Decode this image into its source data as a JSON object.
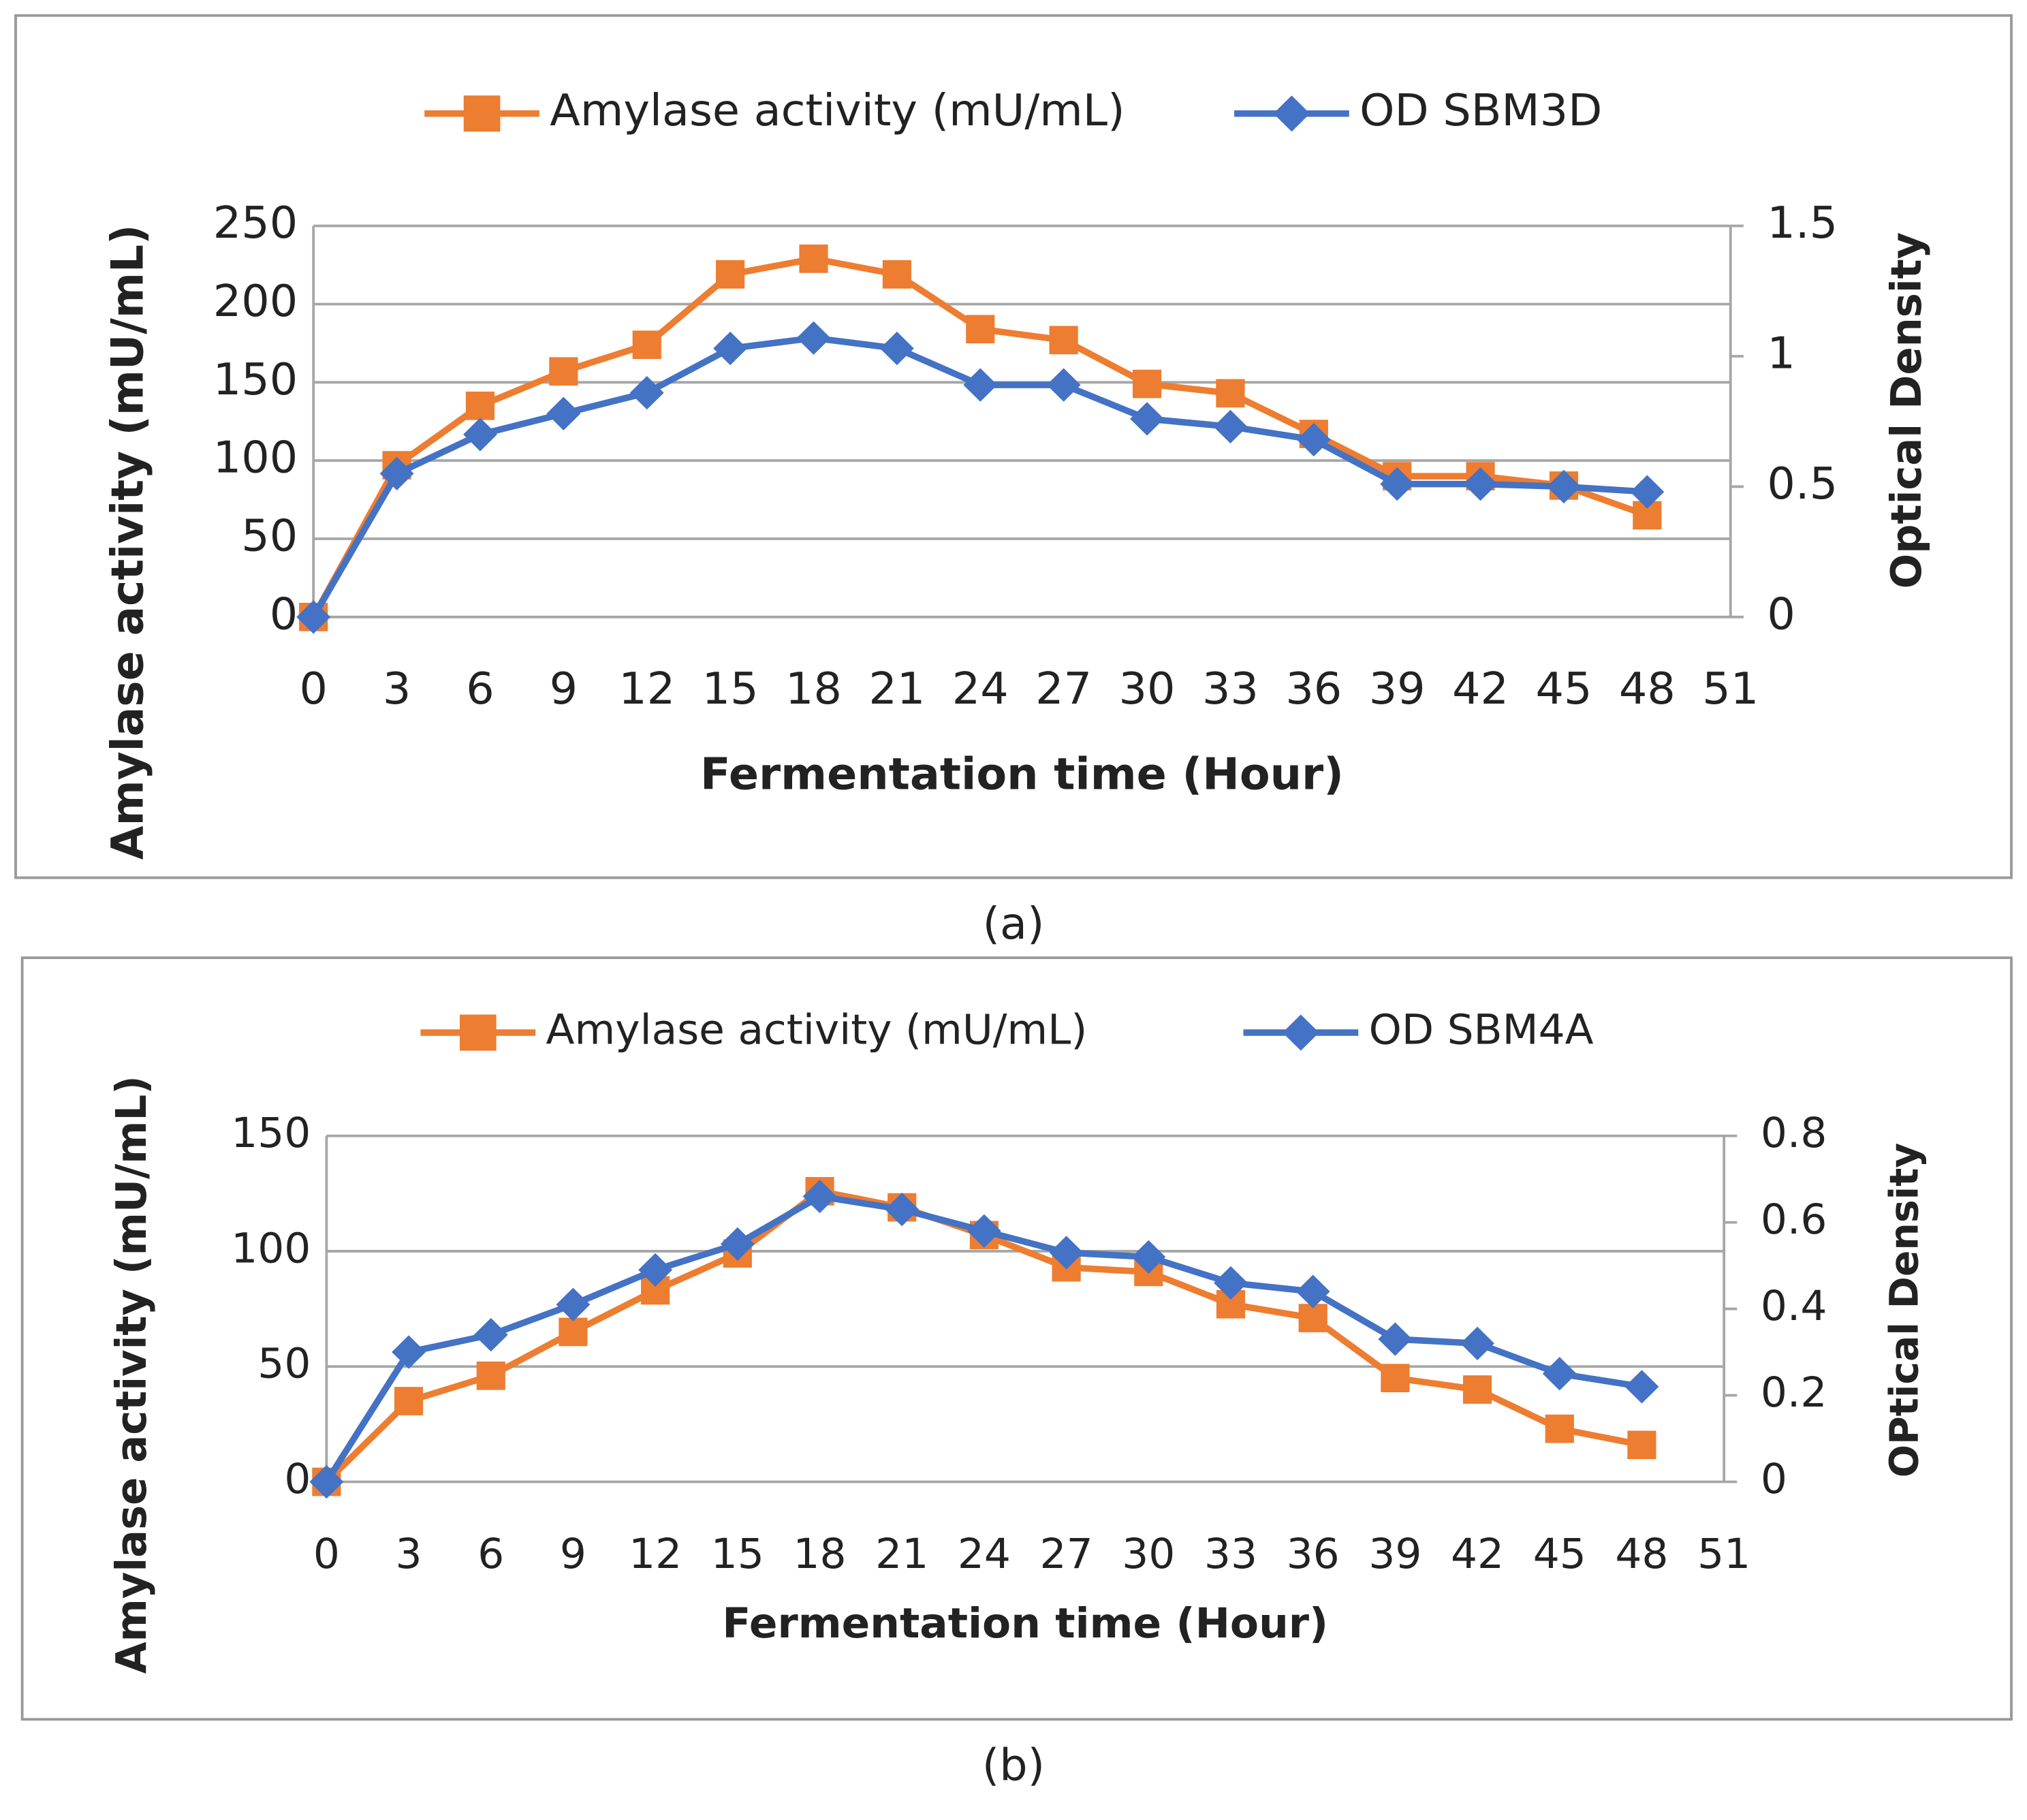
{
  "chart_data": [
    {
      "type": "line",
      "caption": "(a)",
      "x_label": "Fermentation time (Hour)",
      "y_label": "Amylase activity (mU/mL)",
      "y2_label": "Optical Density",
      "x": [
        0,
        3,
        6,
        9,
        12,
        15,
        18,
        21,
        24,
        27,
        30,
        33,
        36,
        39,
        42,
        45,
        48
      ],
      "xlim": [
        0,
        51
      ],
      "xticks": [
        0,
        3,
        6,
        9,
        12,
        15,
        18,
        21,
        24,
        27,
        30,
        33,
        36,
        39,
        42,
        45,
        48,
        51
      ],
      "ylim": [
        0,
        250
      ],
      "yticks": [
        0,
        50,
        100,
        150,
        200,
        250
      ],
      "y2lim": [
        0,
        1.5
      ],
      "y2ticks": [
        0,
        0.5,
        1,
        1.5
      ],
      "grid": true,
      "legend": "top",
      "series": [
        {
          "name": "Amylase activity (mU/mL)",
          "color": "#ed7d31",
          "marker": "square",
          "values": [
            0,
            97,
            135,
            157,
            174,
            219,
            229,
            219,
            184,
            177,
            149,
            143,
            117,
            90,
            90,
            84,
            65
          ]
        },
        {
          "name": "OD SBM3D",
          "color": "#4472c4",
          "marker": "diamond",
          "axis": "y2",
          "values": [
            0,
            0.55,
            0.7,
            0.78,
            0.86,
            1.03,
            1.07,
            1.03,
            0.89,
            0.89,
            0.76,
            0.73,
            0.68,
            0.51,
            0.51,
            0.5,
            0.48
          ]
        }
      ]
    },
    {
      "type": "line",
      "caption": "(b)",
      "x_label": "Fermentation time (Hour)",
      "y_label": "Amylase activity (mU/mL)",
      "y2_label": "OPtical Density",
      "x": [
        0,
        3,
        6,
        9,
        12,
        15,
        18,
        21,
        24,
        27,
        30,
        33,
        36,
        39,
        42,
        45,
        48
      ],
      "xlim": [
        0,
        51
      ],
      "xticks": [
        0,
        3,
        6,
        9,
        12,
        15,
        18,
        21,
        24,
        27,
        30,
        33,
        36,
        39,
        42,
        45,
        48,
        51
      ],
      "ylim": [
        0,
        150
      ],
      "yticks": [
        0,
        50,
        100,
        150
      ],
      "y2lim": [
        0,
        0.8
      ],
      "y2ticks": [
        0,
        0.2,
        0.4,
        0.6,
        0.8
      ],
      "grid": true,
      "legend": "top",
      "series": [
        {
          "name": "Amylase activity (mU/mL)",
          "color": "#ed7d31",
          "marker": "square",
          "values": [
            0,
            35,
            46,
            65,
            83,
            99,
            126,
            119,
            107,
            93,
            91,
            77,
            71,
            45,
            40,
            23,
            16
          ]
        },
        {
          "name": "OD SBM4A",
          "color": "#4472c4",
          "marker": "diamond",
          "axis": "y2",
          "values": [
            0,
            0.3,
            0.34,
            0.41,
            0.49,
            0.55,
            0.66,
            0.63,
            0.58,
            0.53,
            0.52,
            0.46,
            0.44,
            0.33,
            0.32,
            0.25,
            0.22
          ]
        }
      ]
    }
  ]
}
